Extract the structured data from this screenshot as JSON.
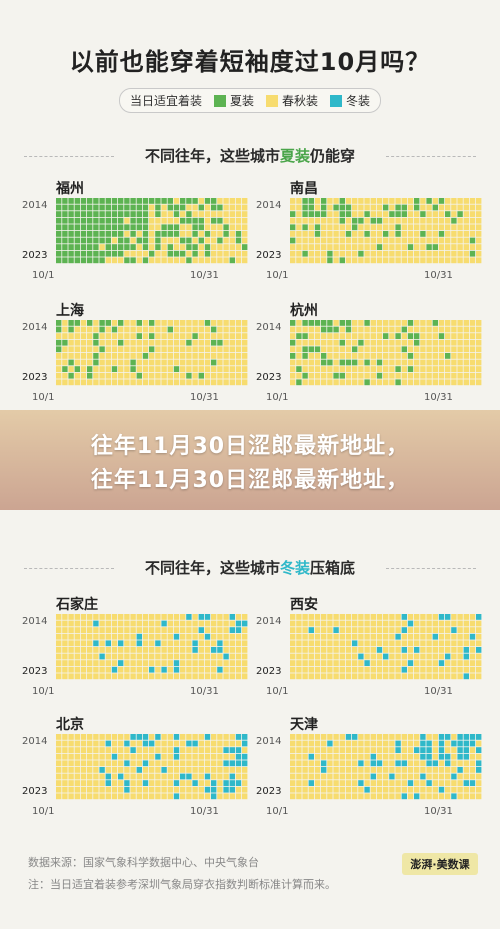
{
  "title": "以前也能穿着短袖度过10月吗？",
  "legend": {
    "header": "当日适宜着装",
    "items": [
      {
        "label": "夏装",
        "color": "#5db352"
      },
      {
        "label": "春秋装",
        "color": "#f7dc6f"
      },
      {
        "label": "冬装",
        "color": "#2fb8c9"
      }
    ]
  },
  "section1": {
    "prefix": "不同往年，这些城市",
    "highlight": "夏装",
    "suffix": "仍能穿",
    "highlight_color": "#4aa54a"
  },
  "section2": {
    "prefix": "不同往年，这些城市",
    "highlight": "冬装",
    "suffix": "压箱底",
    "highlight_color": "#2fb8c9"
  },
  "axis": {
    "year_start": "2014",
    "year_end": "2023",
    "date_start": "10/1",
    "date_end": "10/31"
  },
  "watermark": {
    "line1": "往年11月30日涩郎最新地址，",
    "line2": "往年11月30日涩郎最新地址，"
  },
  "footer": {
    "source": "数据来源：国家气象科学数据中心、中央气象台",
    "note": "注：当日适宜着装参考深圳气象局穿衣指数判断标准计算而来。",
    "logo": "澎湃·美数课"
  },
  "chart_data": [
    {
      "type": "heatmap",
      "title": "福州",
      "summer_share": [
        0.95,
        0.9,
        0.85,
        0.85,
        0.7,
        0.8,
        0.75,
        0.7,
        0.75,
        0.6
      ]
    },
    {
      "type": "heatmap",
      "title": "南昌",
      "summer_share": [
        0.35,
        0.3,
        0.3,
        0.2,
        0.25,
        0.2,
        0.2,
        0.15,
        0.2,
        0.1
      ]
    },
    {
      "type": "heatmap",
      "title": "上海",
      "summer_share": [
        0.35,
        0.15,
        0.15,
        0.1,
        0.1,
        0.1,
        0.1,
        0.1,
        0.15,
        0.05
      ]
    },
    {
      "type": "heatmap",
      "title": "杭州",
      "summer_share": [
        0.35,
        0.3,
        0.3,
        0.3,
        0.25,
        0.2,
        0.2,
        0.2,
        0.2,
        0.1
      ]
    },
    {
      "type": "heatmap",
      "title": "石家庄",
      "winter_share": [
        0.12,
        0.15,
        0.12,
        0.1,
        0.15,
        0.12,
        0.1,
        0.12,
        0.1,
        0.02
      ]
    },
    {
      "type": "heatmap",
      "title": "西安",
      "winter_share": [
        0.1,
        0.1,
        0.1,
        0.12,
        0.1,
        0.1,
        0.08,
        0.08,
        0.08,
        0.02
      ]
    },
    {
      "type": "heatmap",
      "title": "北京",
      "winter_share": [
        0.25,
        0.25,
        0.2,
        0.25,
        0.22,
        0.2,
        0.18,
        0.18,
        0.15,
        0.05
      ]
    },
    {
      "type": "heatmap",
      "title": "天津",
      "winter_share": [
        0.2,
        0.3,
        0.35,
        0.25,
        0.3,
        0.25,
        0.2,
        0.18,
        0.15,
        0.05
      ]
    }
  ]
}
